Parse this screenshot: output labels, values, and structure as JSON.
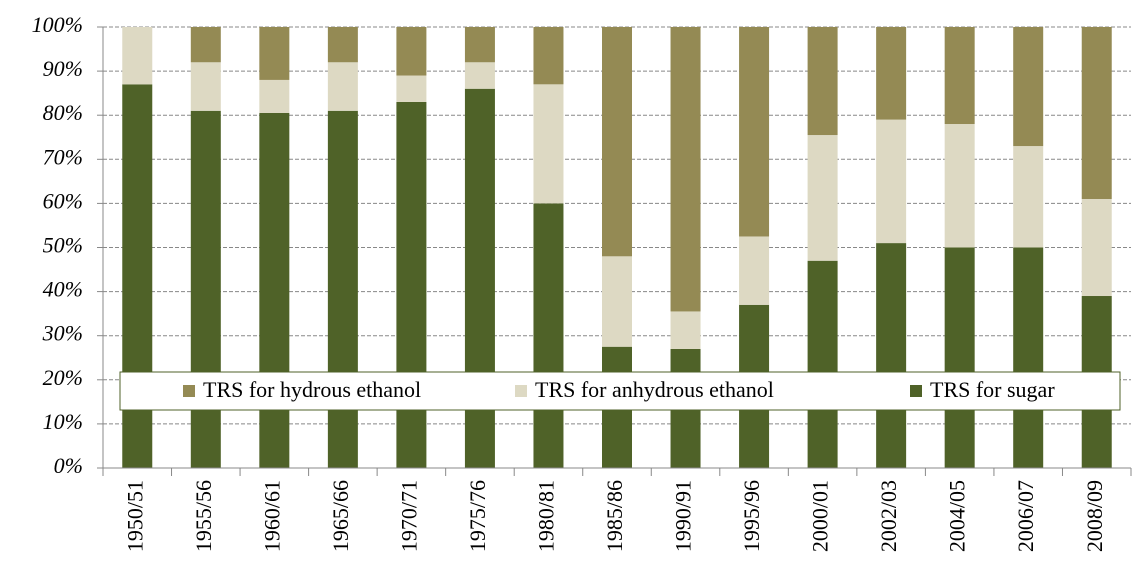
{
  "chart_data": {
    "type": "bar",
    "stacked": true,
    "categories": [
      "1950/51",
      "1955/56",
      "1960/61",
      "1965/66",
      "1970/71",
      "1975/76",
      "1980/81",
      "1985/86",
      "1990/91",
      "1995/96",
      "2000/01",
      "2002/03",
      "2004/05",
      "2006/07",
      "2008/09"
    ],
    "series": [
      {
        "name": "TRS for sugar",
        "color": "#4f6228",
        "values": [
          87,
          81,
          80.5,
          81,
          83,
          86,
          60,
          27.5,
          27,
          37,
          47,
          51,
          50,
          50,
          39
        ]
      },
      {
        "name": "TRS for anhydrous ethanol",
        "color": "#ddd9c3",
        "values": [
          13,
          11,
          7.5,
          11,
          6,
          6,
          27,
          20.5,
          8.5,
          15.5,
          28.5,
          28,
          28,
          23,
          22
        ]
      },
      {
        "name": "TRS for hydrous ethanol",
        "color": "#948a54",
        "values": [
          0,
          8,
          12,
          8,
          11,
          8,
          13,
          52,
          64.5,
          47.5,
          24.5,
          21,
          22,
          27,
          39
        ]
      }
    ],
    "ylim": [
      0,
      100
    ],
    "yticks": [
      {
        "value": 0,
        "label": "0%"
      },
      {
        "value": 10,
        "label": "10%"
      },
      {
        "value": 20,
        "label": "20%"
      },
      {
        "value": 30,
        "label": "30%"
      },
      {
        "value": 40,
        "label": "40%"
      },
      {
        "value": 50,
        "label": "50%"
      },
      {
        "value": 60,
        "label": "60%"
      },
      {
        "value": 70,
        "label": "70%"
      },
      {
        "value": 80,
        "label": "80%"
      },
      {
        "value": 90,
        "label": "90%"
      },
      {
        "value": 100,
        "label": "100%"
      }
    ],
    "grid": true
  }
}
